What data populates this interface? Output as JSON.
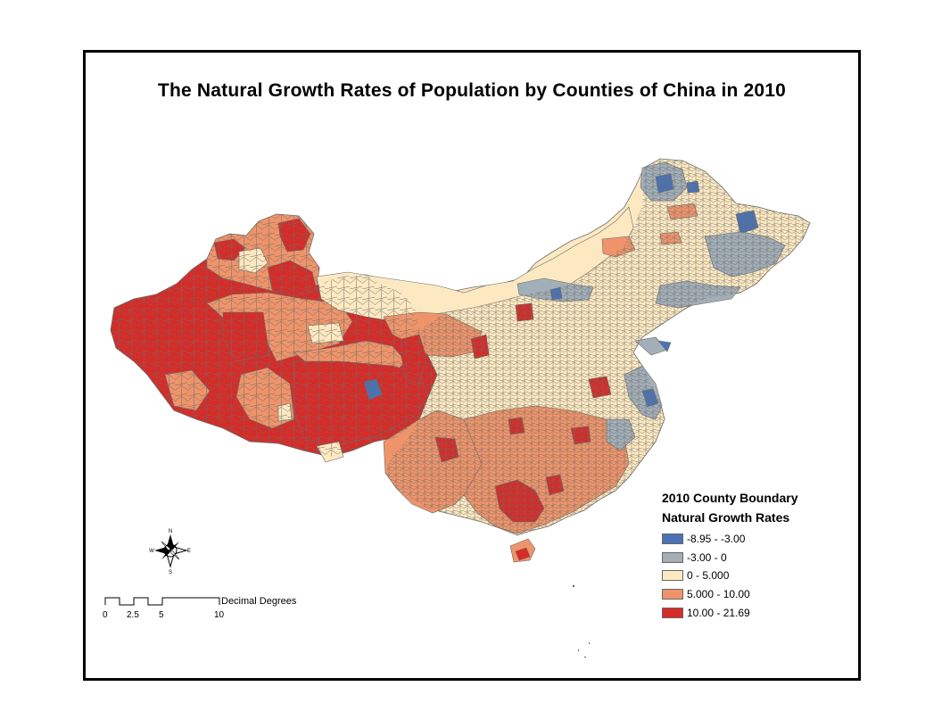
{
  "title": "The Natural Growth Rates of Population by Counties of China in 2010",
  "legend": {
    "layer_title": "2010 County Boundary",
    "field_title": "Natural Growth Rates",
    "classes": [
      {
        "label": "-8.95 - -3.00",
        "color": "#4a72b5"
      },
      {
        "label": "-3.00 - 0",
        "color": "#a3afb8"
      },
      {
        "label": "0 - 5.000",
        "color": "#fde9c1"
      },
      {
        "label": "5.000 - 10.00",
        "color": "#ef946a"
      },
      {
        "label": "10.00 - 21.69",
        "color": "#d62b27"
      }
    ]
  },
  "north_arrow": {
    "n": "N",
    "s": "S",
    "e": "E",
    "w": "W"
  },
  "scale_bar": {
    "unit": "Decimal Degrees",
    "ticks": [
      "0",
      "2.5",
      "5",
      "10"
    ]
  },
  "colors": {
    "border": "#6b6b6b",
    "frame": "#000000"
  }
}
